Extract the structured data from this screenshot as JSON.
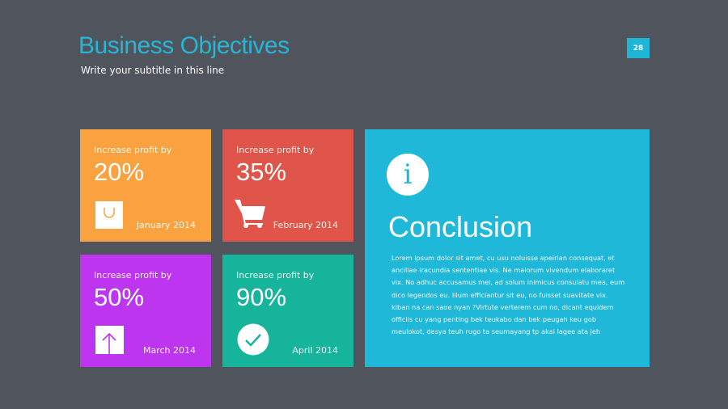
{
  "header": {
    "title": "Business Objectives",
    "subtitle": "Write your subtitle in this line",
    "page_number": "28"
  },
  "tiles": [
    {
      "label": "Increase profit by",
      "percent": "20%",
      "date": "January 2014",
      "icon": "shopping-bag-icon",
      "color": "#f9a23f"
    },
    {
      "label": "Increase profit by",
      "percent": "35%",
      "date": "February 2014",
      "icon": "shopping-cart-icon",
      "color": "#e0554a"
    },
    {
      "label": "Increase profit by",
      "percent": "50%",
      "date": "March 2014",
      "icon": "upload-arrow-icon",
      "color": "#bd35ef"
    },
    {
      "label": "Increase profit by",
      "percent": "90%",
      "date": "April 2014",
      "icon": "checkmark-icon",
      "color": "#16b59b"
    }
  ],
  "conclusion": {
    "icon": "info-icon",
    "icon_glyph": "i",
    "title": "Conclusion",
    "body": "Lorem ipsum dolor sit amet, cu usu noluisse apeirian consequat, et ancillae iracundia sententiae vis. Ne maiorum vivendum elaboraret vix. No adhuc accusamus mei, ad solum inimicus consulatu mea, eum dico legendos eu. Illum efficiantur sit eu, no fuisset suavitate vix. kiban na can saoe nyan ?Virtute verterem cum no, dicant equidem officiis cu yang penting bek teukabo dan bek peugah keu gob meulokot, desya teuh rugo ta seumayang tp akai lagee ata jeh",
    "color": "#20b8d9"
  }
}
